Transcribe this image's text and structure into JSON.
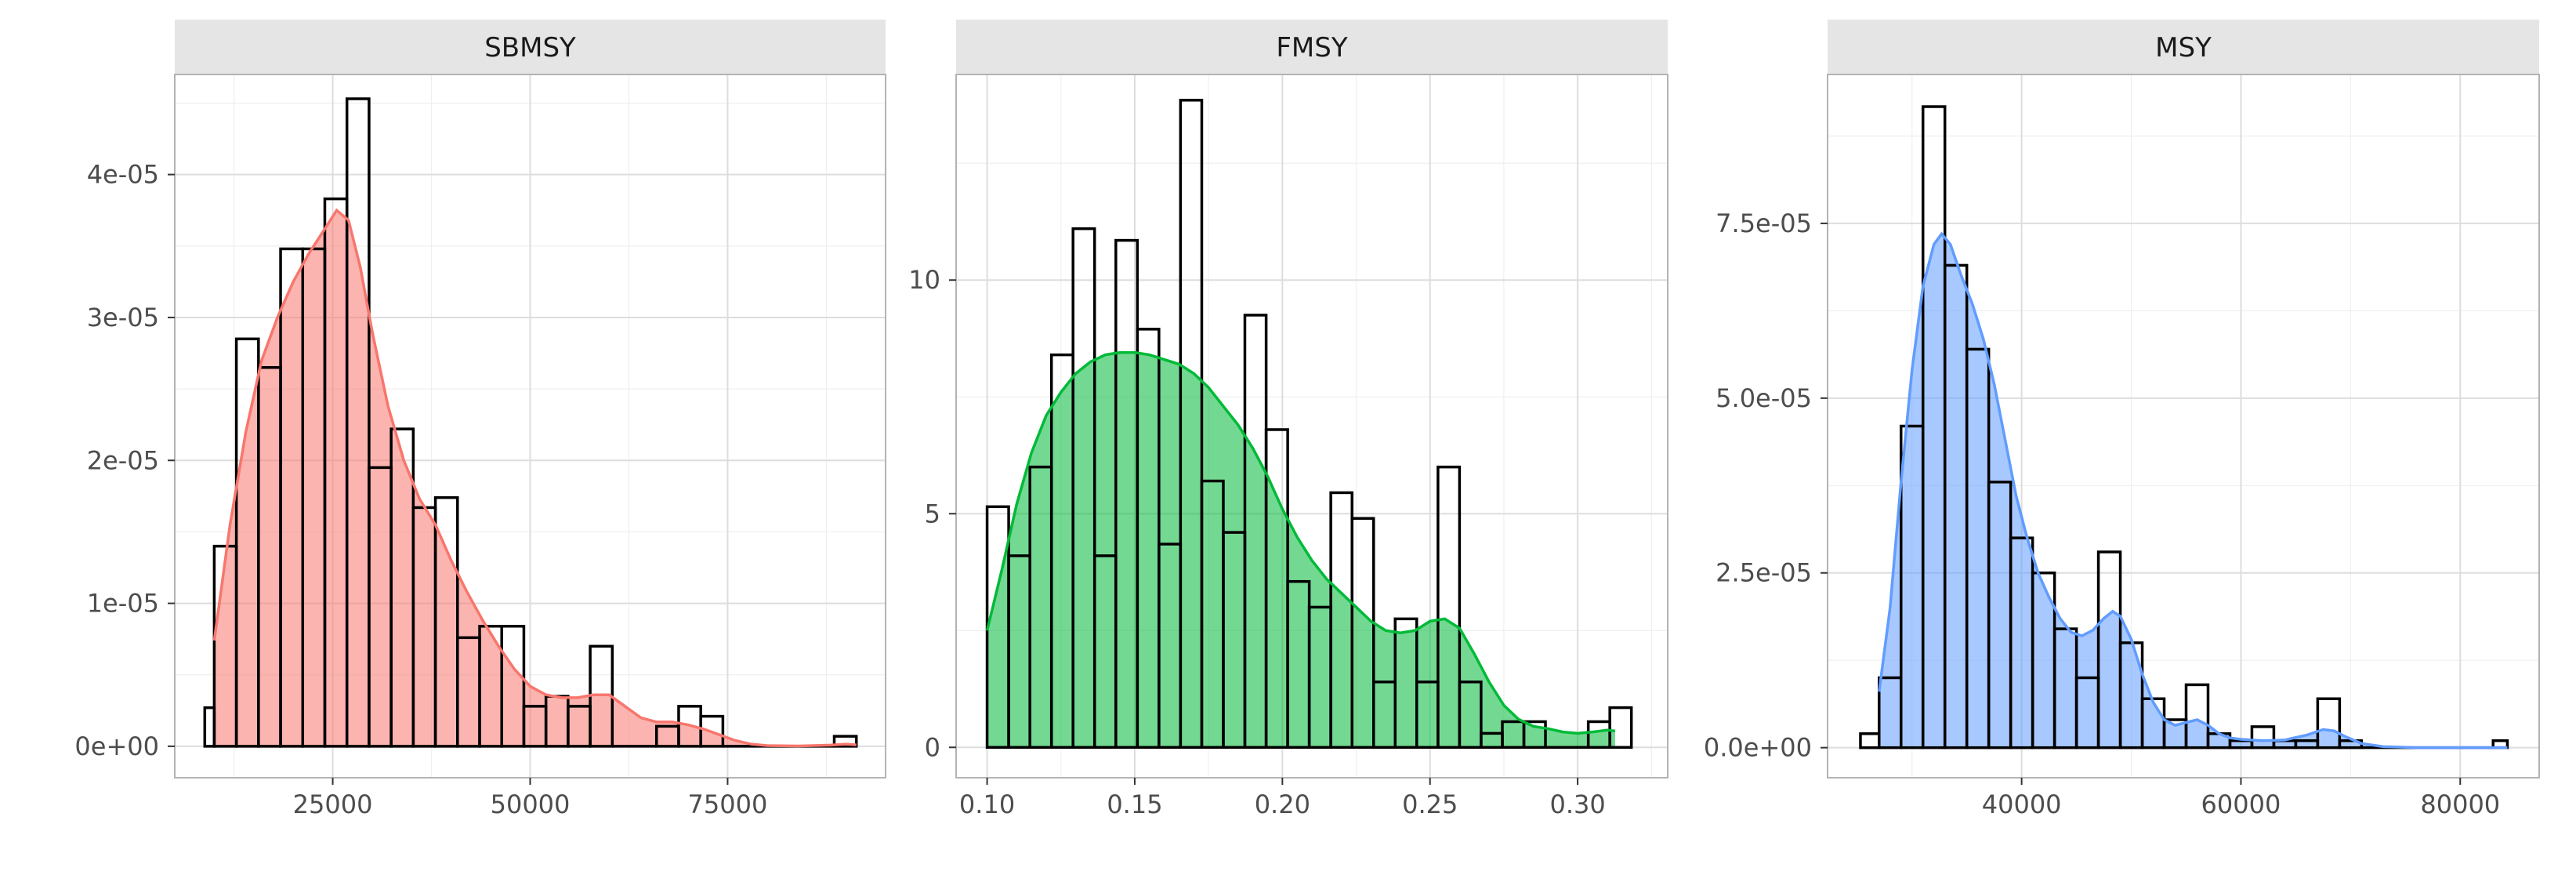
{
  "chart_data": [
    {
      "type": "histogram",
      "title": "SBMSY",
      "xlim": [
        5000,
        95000
      ],
      "ylim": [
        -2.2e-06,
        4.7e-05
      ],
      "x_ticks": [
        25000,
        50000,
        75000
      ],
      "x_tick_labels": [
        "25000",
        "50000",
        "75000"
      ],
      "y_ticks": [
        0,
        1e-05,
        2e-05,
        3e-05,
        4e-05
      ],
      "y_tick_labels": [
        "0e+00",
        "1e-05",
        "2e-05",
        "3e-05",
        "4e-05"
      ],
      "bin_width": 2800,
      "bins": [
        {
          "x0": 8800,
          "x1": 10000,
          "count_density": 2.7e-06
        },
        {
          "x0": 10000,
          "x1": 12800,
          "count_density": 1.4e-05
        },
        {
          "x0": 12800,
          "x1": 15600,
          "count_density": 2.85e-05
        },
        {
          "x0": 15600,
          "x1": 18400,
          "count_density": 2.65e-05
        },
        {
          "x0": 18400,
          "x1": 21200,
          "count_density": 3.48e-05
        },
        {
          "x0": 21200,
          "x1": 24000,
          "count_density": 3.48e-05
        },
        {
          "x0": 24000,
          "x1": 26800,
          "count_density": 3.83e-05
        },
        {
          "x0": 26800,
          "x1": 29600,
          "count_density": 4.53e-05
        },
        {
          "x0": 29600,
          "x1": 32400,
          "count_density": 1.95e-05
        },
        {
          "x0": 32400,
          "x1": 35200,
          "count_density": 2.22e-05
        },
        {
          "x0": 35200,
          "x1": 38000,
          "count_density": 1.67e-05
        },
        {
          "x0": 38000,
          "x1": 40800,
          "count_density": 1.74e-05
        },
        {
          "x0": 40800,
          "x1": 43600,
          "count_density": 7.6e-06
        },
        {
          "x0": 43600,
          "x1": 46400,
          "count_density": 8.4e-06
        },
        {
          "x0": 46400,
          "x1": 49200,
          "count_density": 8.4e-06
        },
        {
          "x0": 49200,
          "x1": 52000,
          "count_density": 2.8e-06
        },
        {
          "x0": 52000,
          "x1": 54800,
          "count_density": 3.5e-06
        },
        {
          "x0": 54800,
          "x1": 57600,
          "count_density": 2.8e-06
        },
        {
          "x0": 57600,
          "x1": 60400,
          "count_density": 7e-06
        },
        {
          "x0": 60400,
          "x1": 66000,
          "count_density": 0
        },
        {
          "x0": 66000,
          "x1": 68800,
          "count_density": 1.4e-06
        },
        {
          "x0": 68800,
          "x1": 71600,
          "count_density": 2.8e-06
        },
        {
          "x0": 71600,
          "x1": 74400,
          "count_density": 2.1e-06
        },
        {
          "x0": 74400,
          "x1": 88500,
          "count_density": 0
        },
        {
          "x0": 88500,
          "x1": 91300,
          "count_density": 7e-07
        }
      ],
      "density_curve": [
        [
          10000,
          7.4e-06
        ],
        [
          12000,
          1.55e-05
        ],
        [
          14000,
          2.2e-05
        ],
        [
          16000,
          2.7e-05
        ],
        [
          18000,
          3e-05
        ],
        [
          20000,
          3.25e-05
        ],
        [
          22000,
          3.45e-05
        ],
        [
          24000,
          3.62e-05
        ],
        [
          25500,
          3.75e-05
        ],
        [
          27000,
          3.68e-05
        ],
        [
          28500,
          3.35e-05
        ],
        [
          30000,
          2.9e-05
        ],
        [
          32000,
          2.38e-05
        ],
        [
          34000,
          2e-05
        ],
        [
          36000,
          1.73e-05
        ],
        [
          38000,
          1.55e-05
        ],
        [
          40000,
          1.3e-05
        ],
        [
          42000,
          1.08e-05
        ],
        [
          44000,
          8.8e-06
        ],
        [
          46000,
          7e-06
        ],
        [
          48000,
          5.4e-06
        ],
        [
          50000,
          4.2e-06
        ],
        [
          52000,
          3.6e-06
        ],
        [
          54000,
          3.4e-06
        ],
        [
          56000,
          3.4e-06
        ],
        [
          58000,
          3.6e-06
        ],
        [
          60000,
          3.6e-06
        ],
        [
          62000,
          2.8e-06
        ],
        [
          64000,
          2e-06
        ],
        [
          66000,
          1.7e-06
        ],
        [
          68000,
          1.7e-06
        ],
        [
          70000,
          1.5e-06
        ],
        [
          72000,
          1.2e-06
        ],
        [
          74000,
          8e-07
        ],
        [
          76000,
          4e-07
        ],
        [
          78000,
          1.5e-07
        ],
        [
          80000,
          5e-08
        ],
        [
          84000,
          2e-08
        ],
        [
          88000,
          8e-08
        ],
        [
          90000,
          1.5e-07
        ],
        [
          91300,
          1e-07
        ]
      ],
      "fill_color": "#F8766D"
    },
    {
      "type": "histogram",
      "title": "FMSY",
      "xlim": [
        0.0895,
        0.3305
      ],
      "ylim": [
        -0.65,
        14.4
      ],
      "x_ticks": [
        0.1,
        0.15,
        0.2,
        0.25,
        0.3
      ],
      "x_tick_labels": [
        "0.10",
        "0.15",
        "0.20",
        "0.25",
        "0.30"
      ],
      "y_ticks": [
        0,
        5,
        10
      ],
      "y_tick_labels": [
        "0",
        "5",
        "10"
      ],
      "bin_width": 0.00727,
      "bins": [
        {
          "x0": 0.1,
          "x1": 0.1073,
          "count_density": 5.15
        },
        {
          "x0": 0.1073,
          "x1": 0.1145,
          "count_density": 4.1
        },
        {
          "x0": 0.1145,
          "x1": 0.1218,
          "count_density": 6.0
        },
        {
          "x0": 0.1218,
          "x1": 0.1291,
          "count_density": 8.4
        },
        {
          "x0": 0.1291,
          "x1": 0.1364,
          "count_density": 11.1
        },
        {
          "x0": 0.1364,
          "x1": 0.1436,
          "count_density": 4.1
        },
        {
          "x0": 0.1436,
          "x1": 0.1509,
          "count_density": 10.85
        },
        {
          "x0": 0.1509,
          "x1": 0.1582,
          "count_density": 8.95
        },
        {
          "x0": 0.1582,
          "x1": 0.1655,
          "count_density": 4.35
        },
        {
          "x0": 0.1655,
          "x1": 0.1727,
          "count_density": 13.85
        },
        {
          "x0": 0.1727,
          "x1": 0.18,
          "count_density": 5.7
        },
        {
          "x0": 0.18,
          "x1": 0.1873,
          "count_density": 4.6
        },
        {
          "x0": 0.1873,
          "x1": 0.1945,
          "count_density": 9.25
        },
        {
          "x0": 0.1945,
          "x1": 0.2018,
          "count_density": 6.8
        },
        {
          "x0": 0.2018,
          "x1": 0.2091,
          "count_density": 3.55
        },
        {
          "x0": 0.2091,
          "x1": 0.2164,
          "count_density": 3.0
        },
        {
          "x0": 0.2164,
          "x1": 0.2236,
          "count_density": 5.45
        },
        {
          "x0": 0.2236,
          "x1": 0.2309,
          "count_density": 4.9
        },
        {
          "x0": 0.2309,
          "x1": 0.2382,
          "count_density": 1.4
        },
        {
          "x0": 0.2382,
          "x1": 0.2455,
          "count_density": 2.75
        },
        {
          "x0": 0.2455,
          "x1": 0.2527,
          "count_density": 1.4
        },
        {
          "x0": 0.2527,
          "x1": 0.26,
          "count_density": 6.0
        },
        {
          "x0": 0.26,
          "x1": 0.2673,
          "count_density": 1.4
        },
        {
          "x0": 0.2673,
          "x1": 0.2745,
          "count_density": 0.3
        },
        {
          "x0": 0.2745,
          "x1": 0.2818,
          "count_density": 0.55
        },
        {
          "x0": 0.2818,
          "x1": 0.2891,
          "count_density": 0.55
        },
        {
          "x0": 0.2891,
          "x1": 0.3036,
          "count_density": 0
        },
        {
          "x0": 0.3036,
          "x1": 0.3109,
          "count_density": 0.55
        },
        {
          "x0": 0.3109,
          "x1": 0.3182,
          "count_density": 0.85
        }
      ],
      "density_curve": [
        [
          0.1,
          2.5
        ],
        [
          0.105,
          3.8
        ],
        [
          0.11,
          5.2
        ],
        [
          0.115,
          6.3
        ],
        [
          0.12,
          7.1
        ],
        [
          0.125,
          7.6
        ],
        [
          0.13,
          8.0
        ],
        [
          0.135,
          8.25
        ],
        [
          0.14,
          8.4
        ],
        [
          0.145,
          8.45
        ],
        [
          0.15,
          8.45
        ],
        [
          0.155,
          8.4
        ],
        [
          0.16,
          8.3
        ],
        [
          0.165,
          8.2
        ],
        [
          0.17,
          8.0
        ],
        [
          0.175,
          7.7
        ],
        [
          0.18,
          7.3
        ],
        [
          0.185,
          6.9
        ],
        [
          0.19,
          6.4
        ],
        [
          0.195,
          5.8
        ],
        [
          0.2,
          5.1
        ],
        [
          0.205,
          4.5
        ],
        [
          0.21,
          4.0
        ],
        [
          0.215,
          3.6
        ],
        [
          0.22,
          3.3
        ],
        [
          0.225,
          3.0
        ],
        [
          0.23,
          2.7
        ],
        [
          0.235,
          2.5
        ],
        [
          0.24,
          2.45
        ],
        [
          0.245,
          2.5
        ],
        [
          0.25,
          2.7
        ],
        [
          0.255,
          2.75
        ],
        [
          0.26,
          2.55
        ],
        [
          0.265,
          2.0
        ],
        [
          0.27,
          1.4
        ],
        [
          0.275,
          0.9
        ],
        [
          0.28,
          0.6
        ],
        [
          0.285,
          0.45
        ],
        [
          0.29,
          0.4
        ],
        [
          0.295,
          0.33
        ],
        [
          0.3,
          0.3
        ],
        [
          0.305,
          0.33
        ],
        [
          0.31,
          0.37
        ],
        [
          0.3127,
          0.35
        ]
      ],
      "fill_color": "#00BA38"
    },
    {
      "type": "histogram",
      "title": "MSY",
      "xlim": [
        22300,
        87200
      ],
      "ylim": [
        -4.3e-06,
        9.63e-05
      ],
      "x_ticks": [
        40000,
        60000,
        80000
      ],
      "x_tick_labels": [
        "40000",
        "60000",
        "80000"
      ],
      "y_ticks": [
        0,
        2.5e-05,
        5e-05,
        7.5e-05
      ],
      "y_tick_labels": [
        "0.0e+00",
        "2.5e-05",
        "5.0e-05",
        "7.5e-05"
      ],
      "bin_width": 2040,
      "bins": [
        {
          "x0": 25300,
          "x1": 27000,
          "count_density": 2e-06
        },
        {
          "x0": 27000,
          "x1": 29000,
          "count_density": 1e-05
        },
        {
          "x0": 29000,
          "x1": 31000,
          "count_density": 4.6e-05
        },
        {
          "x0": 31000,
          "x1": 33000,
          "count_density": 9.17e-05
        },
        {
          "x0": 33000,
          "x1": 35000,
          "count_density": 6.9e-05
        },
        {
          "x0": 35000,
          "x1": 37000,
          "count_density": 5.7e-05
        },
        {
          "x0": 37000,
          "x1": 39000,
          "count_density": 3.8e-05
        },
        {
          "x0": 39000,
          "x1": 41000,
          "count_density": 3e-05
        },
        {
          "x0": 41000,
          "x1": 43000,
          "count_density": 2.5e-05
        },
        {
          "x0": 43000,
          "x1": 45000,
          "count_density": 1.7e-05
        },
        {
          "x0": 45000,
          "x1": 47000,
          "count_density": 1e-05
        },
        {
          "x0": 47000,
          "x1": 49000,
          "count_density": 2.8e-05
        },
        {
          "x0": 49000,
          "x1": 51000,
          "count_density": 1.5e-05
        },
        {
          "x0": 51000,
          "x1": 53000,
          "count_density": 7e-06
        },
        {
          "x0": 53000,
          "x1": 55000,
          "count_density": 4e-06
        },
        {
          "x0": 55000,
          "x1": 57000,
          "count_density": 9e-06
        },
        {
          "x0": 57000,
          "x1": 59000,
          "count_density": 2e-06
        },
        {
          "x0": 59000,
          "x1": 61000,
          "count_density": 1e-06
        },
        {
          "x0": 61000,
          "x1": 63000,
          "count_density": 3e-06
        },
        {
          "x0": 63000,
          "x1": 65000,
          "count_density": 1e-06
        },
        {
          "x0": 65000,
          "x1": 67000,
          "count_density": 1e-06
        },
        {
          "x0": 67000,
          "x1": 69000,
          "count_density": 7e-06
        },
        {
          "x0": 69000,
          "x1": 71000,
          "count_density": 1e-06
        },
        {
          "x0": 71000,
          "x1": 83000,
          "count_density": 0
        },
        {
          "x0": 83000,
          "x1": 84300,
          "count_density": 1e-06
        }
      ],
      "density_curve": [
        [
          27000,
          8e-06
        ],
        [
          28000,
          2e-05
        ],
        [
          29000,
          3.8e-05
        ],
        [
          30000,
          5.4e-05
        ],
        [
          31000,
          6.6e-05
        ],
        [
          32000,
          7.2e-05
        ],
        [
          32700,
          7.35e-05
        ],
        [
          33500,
          7.2e-05
        ],
        [
          34500,
          6.75e-05
        ],
        [
          35500,
          6.35e-05
        ],
        [
          36500,
          5.85e-05
        ],
        [
          37500,
          5.2e-05
        ],
        [
          38500,
          4.4e-05
        ],
        [
          39500,
          3.6e-05
        ],
        [
          40500,
          3e-05
        ],
        [
          41500,
          2.5e-05
        ],
        [
          42500,
          2.15e-05
        ],
        [
          43500,
          1.85e-05
        ],
        [
          44500,
          1.65e-05
        ],
        [
          45500,
          1.6e-05
        ],
        [
          46500,
          1.68e-05
        ],
        [
          47500,
          1.85e-05
        ],
        [
          48300,
          1.95e-05
        ],
        [
          49000,
          1.88e-05
        ],
        [
          50000,
          1.55e-05
        ],
        [
          51000,
          1.05e-05
        ],
        [
          52000,
          6.5e-06
        ],
        [
          53000,
          4e-06
        ],
        [
          54000,
          3.2e-06
        ],
        [
          55000,
          3.6e-06
        ],
        [
          56000,
          4e-06
        ],
        [
          57000,
          3.2e-06
        ],
        [
          58000,
          2e-06
        ],
        [
          59000,
          1.4e-06
        ],
        [
          60000,
          1.2e-06
        ],
        [
          62000,
          1e-06
        ],
        [
          64000,
          1.1e-06
        ],
        [
          66000,
          1.8e-06
        ],
        [
          67500,
          2.6e-06
        ],
        [
          68500,
          2.4e-06
        ],
        [
          69500,
          1.6e-06
        ],
        [
          71000,
          6e-07
        ],
        [
          73000,
          1.5e-07
        ],
        [
          76000,
          0
        ],
        [
          80000,
          0
        ],
        [
          84300,
          0
        ]
      ],
      "fill_color": "#619CFF"
    }
  ],
  "style": {
    "strip_background": "#E5E5E5",
    "panel_border": "#B3B3B3",
    "grid_major": "#DDDDDD",
    "grid_minor": "#EFEFEF",
    "bar_outline": "#000000",
    "tick_label_color": "#4D4D4D",
    "strip_text_color": "#1A1A1A"
  }
}
